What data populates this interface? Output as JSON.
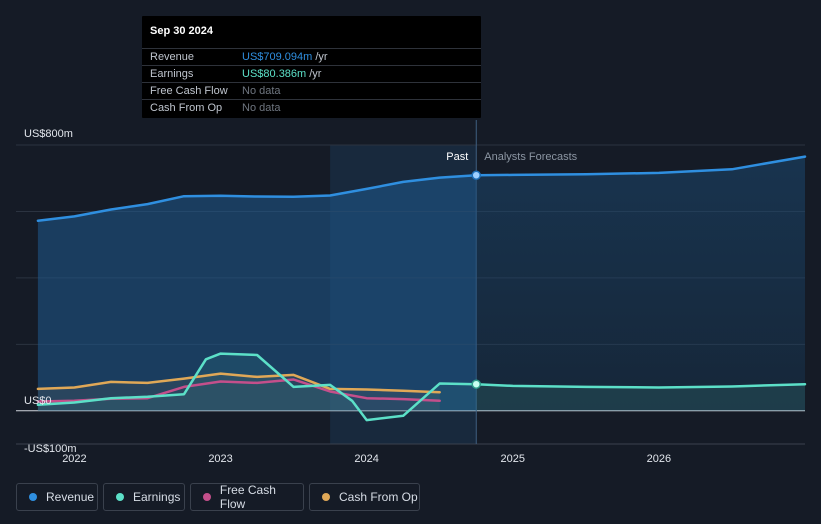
{
  "tooltip": {
    "date": "Sep 30 2024",
    "rows": [
      {
        "label": "Revenue",
        "value": "US$709.094m",
        "unit": "/yr",
        "color": "#2f8fe0"
      },
      {
        "label": "Earnings",
        "value": "US$80.386m",
        "unit": "/yr",
        "color": "#5ce0c8"
      },
      {
        "label": "Free Cash Flow",
        "value": "No data",
        "unit": "",
        "color": "#6f7680"
      },
      {
        "label": "Cash From Op",
        "value": "No data",
        "unit": "",
        "color": "#6f7680"
      }
    ]
  },
  "chart_data": {
    "type": "line",
    "x_range": [
      2021.6,
      2027.0
    ],
    "y_range": [
      -100,
      800
    ],
    "y_tick_labels": [
      {
        "value": 800,
        "label": "US$800m"
      },
      {
        "value": 0,
        "label": "US$0"
      },
      {
        "value": -100,
        "label": "-US$100m"
      }
    ],
    "x_ticks": [
      2022,
      2023,
      2024,
      2025,
      2026
    ],
    "x_tick_labels": [
      "2022",
      "2023",
      "2024",
      "2025",
      "2026"
    ],
    "past_label": "Past",
    "forecast_label": "Analysts Forecasts",
    "divider_x": 2024.75,
    "highlight_start": 2023.75,
    "grid": true,
    "series": [
      {
        "name": "Revenue",
        "color": "#2f8fe0",
        "points": [
          [
            2021.75,
            572
          ],
          [
            2022.0,
            585
          ],
          [
            2022.25,
            606
          ],
          [
            2022.5,
            622
          ],
          [
            2022.75,
            646
          ],
          [
            2023.0,
            647
          ],
          [
            2023.25,
            645
          ],
          [
            2023.5,
            644
          ],
          [
            2023.75,
            648
          ],
          [
            2024.0,
            668
          ],
          [
            2024.25,
            689
          ],
          [
            2024.5,
            702
          ],
          [
            2024.75,
            709
          ]
        ]
      },
      {
        "name": "Revenue forecast",
        "color": "#2f8fe0",
        "points": [
          [
            2024.75,
            709
          ],
          [
            2025.0,
            710
          ],
          [
            2025.5,
            712
          ],
          [
            2026.0,
            716
          ],
          [
            2026.5,
            727
          ],
          [
            2027.0,
            765
          ]
        ]
      },
      {
        "name": "Earnings",
        "color": "#5ce0c8",
        "points": [
          [
            2021.75,
            18
          ],
          [
            2022.0,
            25
          ],
          [
            2022.25,
            38
          ],
          [
            2022.5,
            42
          ],
          [
            2022.75,
            50
          ],
          [
            2022.9,
            155
          ],
          [
            2023.0,
            172
          ],
          [
            2023.25,
            168
          ],
          [
            2023.5,
            72
          ],
          [
            2023.75,
            78
          ],
          [
            2023.9,
            30
          ],
          [
            2024.0,
            -28
          ],
          [
            2024.25,
            -15
          ],
          [
            2024.5,
            82
          ],
          [
            2024.75,
            80
          ]
        ]
      },
      {
        "name": "Earnings forecast",
        "color": "#5ce0c8",
        "points": [
          [
            2024.75,
            80
          ],
          [
            2025.0,
            75
          ],
          [
            2025.5,
            72
          ],
          [
            2026.0,
            70
          ],
          [
            2026.5,
            73
          ],
          [
            2027.0,
            80
          ]
        ]
      },
      {
        "name": "Free Cash Flow",
        "color": "#c44f8b",
        "points": [
          [
            2021.75,
            28
          ],
          [
            2022.0,
            30
          ],
          [
            2022.25,
            36
          ],
          [
            2022.5,
            38
          ],
          [
            2022.75,
            72
          ],
          [
            2023.0,
            88
          ],
          [
            2023.25,
            84
          ],
          [
            2023.5,
            94
          ],
          [
            2023.75,
            58
          ],
          [
            2024.0,
            38
          ],
          [
            2024.25,
            35
          ],
          [
            2024.5,
            30
          ]
        ]
      },
      {
        "name": "Cash From Op",
        "color": "#e0a857",
        "points": [
          [
            2021.75,
            66
          ],
          [
            2022.0,
            70
          ],
          [
            2022.25,
            87
          ],
          [
            2022.5,
            84
          ],
          [
            2022.75,
            97
          ],
          [
            2023.0,
            112
          ],
          [
            2023.25,
            102
          ],
          [
            2023.5,
            108
          ],
          [
            2023.75,
            66
          ],
          [
            2024.0,
            64
          ],
          [
            2024.25,
            60
          ],
          [
            2024.5,
            56
          ]
        ]
      }
    ]
  },
  "legend": [
    {
      "label": "Revenue",
      "color": "#2f8fe0"
    },
    {
      "label": "Earnings",
      "color": "#5ce0c8"
    },
    {
      "label": "Free Cash Flow",
      "color": "#c44f8b"
    },
    {
      "label": "Cash From Op",
      "color": "#e0a857"
    }
  ]
}
